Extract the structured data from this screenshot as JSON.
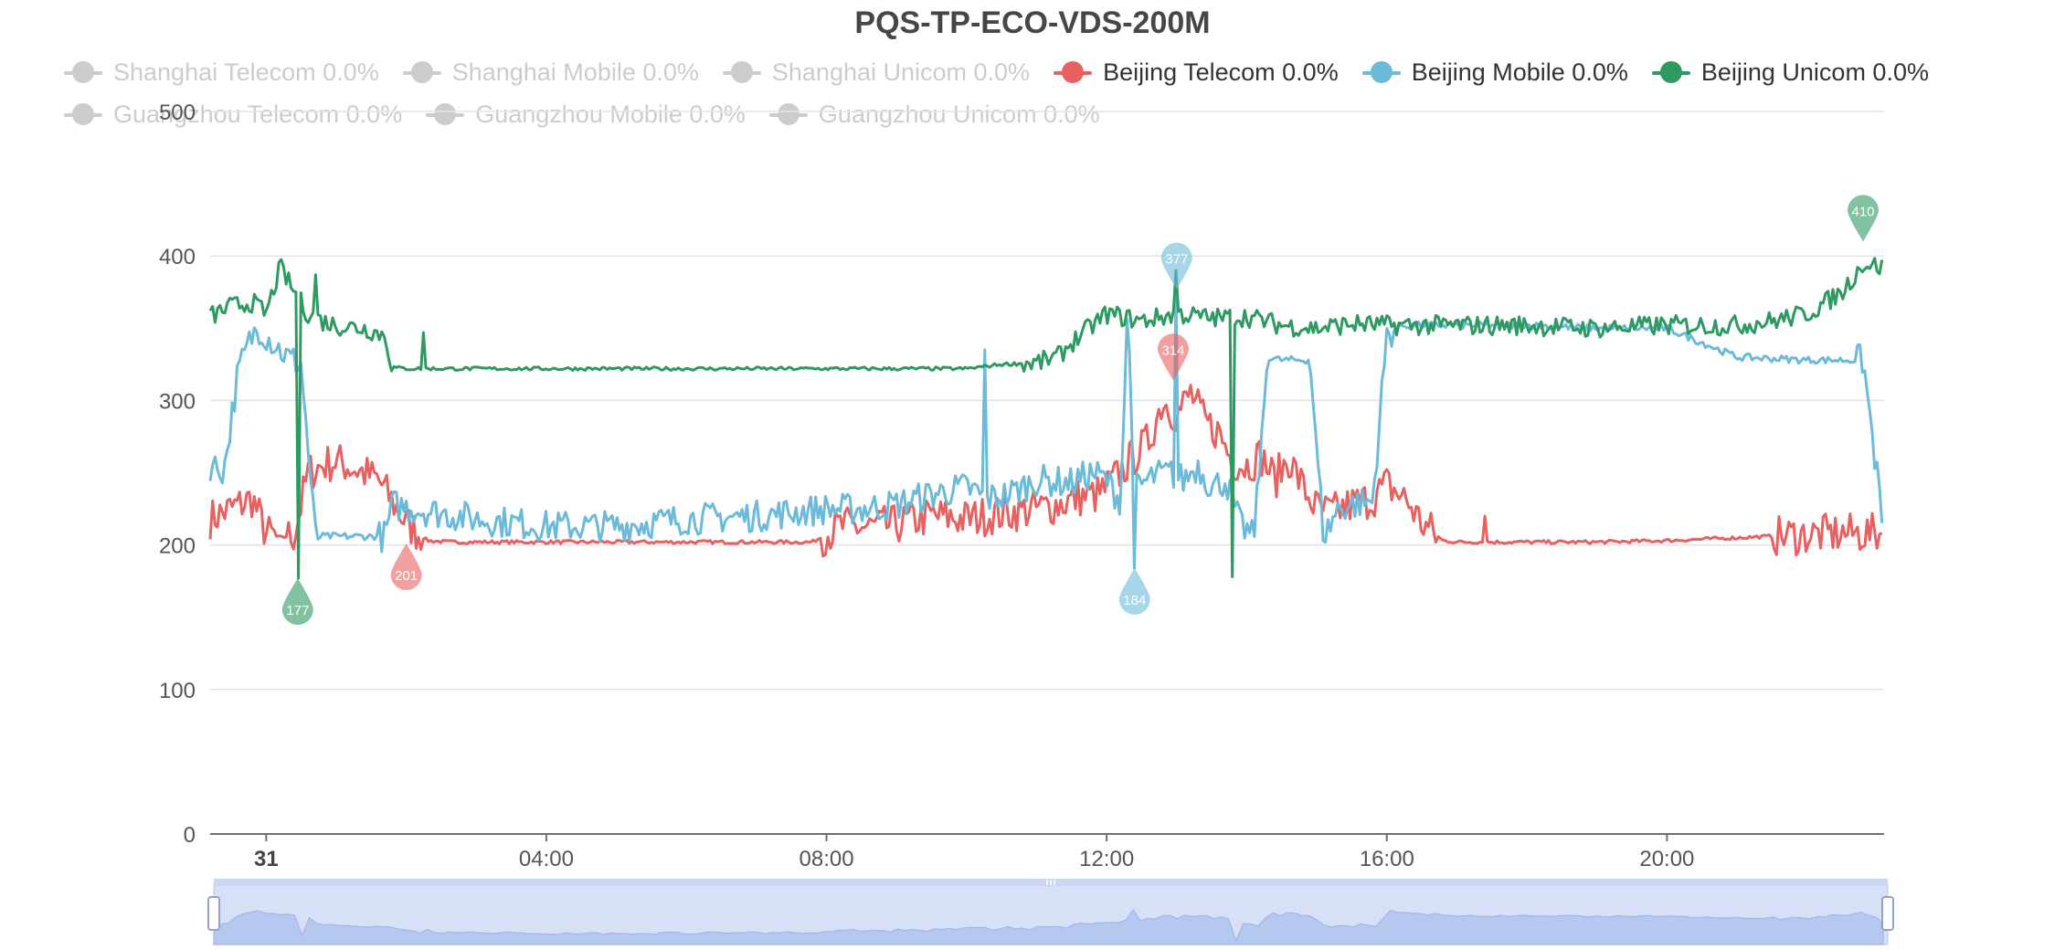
{
  "title": "PQS-TP-ECO-VDS-200M",
  "legend": {
    "row1": [
      {
        "label": "Shanghai Telecom 0.0%",
        "color": "#cccccc",
        "active": false
      },
      {
        "label": "Shanghai Mobile 0.0%",
        "color": "#cccccc",
        "active": false
      },
      {
        "label": "Shanghai Unicom 0.0%",
        "color": "#cccccc",
        "active": false
      },
      {
        "label": "Beijing Telecom 0.0%",
        "color": "#e8605f",
        "active": true
      },
      {
        "label": "Beijing Mobile 0.0%",
        "color": "#6bbad9",
        "active": true
      },
      {
        "label": "Beijing Unicom 0.0%",
        "color": "#2e9a62",
        "active": true
      }
    ],
    "row2": [
      {
        "label": "Guangzhou Telecom 0.0%",
        "color": "#cccccc",
        "active": false
      },
      {
        "label": "Guangzhou Mobile 0.0%",
        "color": "#cccccc",
        "active": false
      },
      {
        "label": "Guangzhou Unicom 0.0%",
        "color": "#cccccc",
        "active": false
      }
    ]
  },
  "chart_data": {
    "type": "line",
    "title": "PQS-TP-ECO-VDS-200M",
    "xlabel": "",
    "ylabel": "",
    "ylim": [
      0,
      500
    ],
    "y_ticks": [
      "0",
      "100",
      "200",
      "300",
      "400",
      "500"
    ],
    "xlim": [
      -0.8,
      23.1
    ],
    "x_ticks": [
      {
        "label": "31",
        "hour": 0,
        "bold": true
      },
      {
        "label": "04:00",
        "hour": 4
      },
      {
        "label": "08:00",
        "hour": 8
      },
      {
        "label": "12:00",
        "hour": 12
      },
      {
        "label": "16:00",
        "hour": 16
      },
      {
        "label": "20:00",
        "hour": 20
      }
    ],
    "grid": true,
    "legend_position": "top",
    "series": [
      {
        "name": "Beijing Telecom",
        "color": "#e8605f",
        "x": [
          -0.8,
          -0.5,
          -0.2,
          0,
          0.2,
          0.4,
          0.6,
          0.8,
          1.0,
          1.3,
          1.6,
          1.8,
          2.0,
          2.3,
          2.6,
          3,
          3.5,
          4,
          5,
          6,
          7,
          7.8,
          8.2,
          8.6,
          9,
          9.5,
          10,
          10.5,
          11,
          11.3,
          11.6,
          11.9,
          12.1,
          12.4,
          12.6,
          12.8,
          13.0,
          13.2,
          13.4,
          13.6,
          13.8,
          14.0,
          14.2,
          14.4,
          14.6,
          14.8,
          15.0,
          15.2,
          15.5,
          15.8,
          16.0,
          16.3,
          16.5,
          16.8,
          17,
          18,
          19,
          20,
          21,
          22,
          22.5,
          23.1
        ],
        "y": [
          218,
          225,
          232,
          208,
          205,
          207,
          250,
          255,
          258,
          252,
          245,
          230,
          215,
          203,
          202,
          202,
          202,
          202,
          202,
          202,
          202,
          202,
          213,
          212,
          214,
          220,
          218,
          222,
          225,
          228,
          233,
          235,
          245,
          262,
          272,
          300,
          290,
          305,
          285,
          278,
          258,
          255,
          262,
          245,
          260,
          240,
          225,
          222,
          228,
          232,
          242,
          230,
          215,
          203,
          202,
          202,
          202,
          203,
          205,
          207,
          208,
          208
        ]
      },
      {
        "name": "Beijing Mobile",
        "color": "#6bbad9",
        "x": [
          -0.8,
          -0.6,
          -0.4,
          -0.2,
          -0.1,
          0.1,
          0.3,
          0.5,
          0.7,
          1.5,
          1.7,
          1.8,
          2.0,
          2.5,
          3,
          4,
          5,
          6,
          7,
          8,
          8.5,
          9,
          9.5,
          10,
          10.3,
          10.6,
          11,
          11.5,
          11.8,
          12.0,
          12.2,
          12.3,
          12.4,
          12.5,
          12.7,
          12.9,
          13.1,
          13.3,
          13.5,
          13.7,
          13.9,
          14.1,
          14.3,
          14.5,
          14.7,
          14.9,
          15.1,
          15.3,
          15.5,
          15.8,
          16.0,
          16.2,
          17,
          18,
          19,
          20,
          21,
          22,
          22.8,
          23.1
        ],
        "y": [
          255,
          252,
          320,
          345,
          350,
          340,
          330,
          325,
          206,
          206,
          206,
          228,
          226,
          222,
          218,
          213,
          213,
          218,
          220,
          225,
          225,
          228,
          235,
          240,
          232,
          235,
          245,
          243,
          250,
          245,
          230,
          365,
          240,
          242,
          248,
          250,
          245,
          255,
          240,
          245,
          215,
          205,
          330,
          328,
          328,
          328,
          205,
          225,
          228,
          230,
          345,
          352,
          352,
          352,
          350,
          350,
          330,
          328,
          328,
          208
        ]
      },
      {
        "name": "Beijing Unicom",
        "color": "#2e9a62",
        "x": [
          -0.8,
          -0.5,
          -0.2,
          0,
          0.2,
          0.4,
          0.6,
          0.8,
          1,
          1.4,
          1.7,
          1.8,
          2,
          2.5,
          3,
          4,
          5,
          6,
          7,
          8,
          9,
          10,
          10.5,
          11,
          11.3,
          11.5,
          11.8,
          12,
          12.5,
          13,
          13.5,
          14,
          14.5,
          15,
          15.5,
          16,
          16.5,
          17,
          18,
          19,
          20,
          21,
          21.5,
          22,
          22.5,
          22.8,
          23.1
        ],
        "y": [
          358,
          365,
          368,
          360,
          392,
          375,
          360,
          355,
          352,
          350,
          345,
          323,
          322,
          322,
          322,
          322,
          322,
          322,
          322,
          322,
          322,
          322,
          325,
          326,
          330,
          340,
          352,
          360,
          355,
          360,
          357,
          358,
          352,
          350,
          353,
          352,
          352,
          352,
          352,
          350,
          352,
          352,
          355,
          360,
          375,
          395,
          392
        ]
      }
    ],
    "markers": [
      {
        "series": "Beijing Unicom",
        "kind": "min",
        "x": 0.45,
        "y": 177,
        "label": "177",
        "color": "#2e9a62"
      },
      {
        "series": "Beijing Unicom",
        "kind": "max",
        "x": 22.8,
        "y": 410,
        "label": "410",
        "color": "#2e9a62"
      },
      {
        "series": "Beijing Telecom",
        "kind": "min",
        "x": 2.0,
        "y": 201,
        "label": "201",
        "color": "#e8605f"
      },
      {
        "series": "Beijing Telecom",
        "kind": "max",
        "x": 12.95,
        "y": 314,
        "label": "314",
        "color": "#e8605f"
      },
      {
        "series": "Beijing Mobile",
        "kind": "min",
        "x": 12.4,
        "y": 184,
        "label": "184",
        "color": "#6bbad9"
      },
      {
        "series": "Beijing Mobile",
        "kind": "max",
        "x": 13.0,
        "y": 377,
        "label": "377",
        "color": "#6bbad9"
      }
    ],
    "spikes": [
      {
        "series": "Beijing Unicom",
        "x": 0.45,
        "y": 177
      },
      {
        "series": "Beijing Unicom",
        "x": 0.7,
        "y": 387
      },
      {
        "series": "Beijing Unicom",
        "x": 2.25,
        "y": 347
      },
      {
        "series": "Beijing Unicom",
        "x": 13.8,
        "y": 178
      },
      {
        "series": "Beijing Unicom",
        "x": 13.0,
        "y": 390
      },
      {
        "series": "Beijing Mobile",
        "x": 10.25,
        "y": 335
      },
      {
        "series": "Beijing Mobile",
        "x": 12.4,
        "y": 184
      },
      {
        "series": "Beijing Mobile",
        "x": 13.0,
        "y": 377
      },
      {
        "series": "Beijing Telecom",
        "x": 17.4,
        "y": 220
      }
    ]
  }
}
